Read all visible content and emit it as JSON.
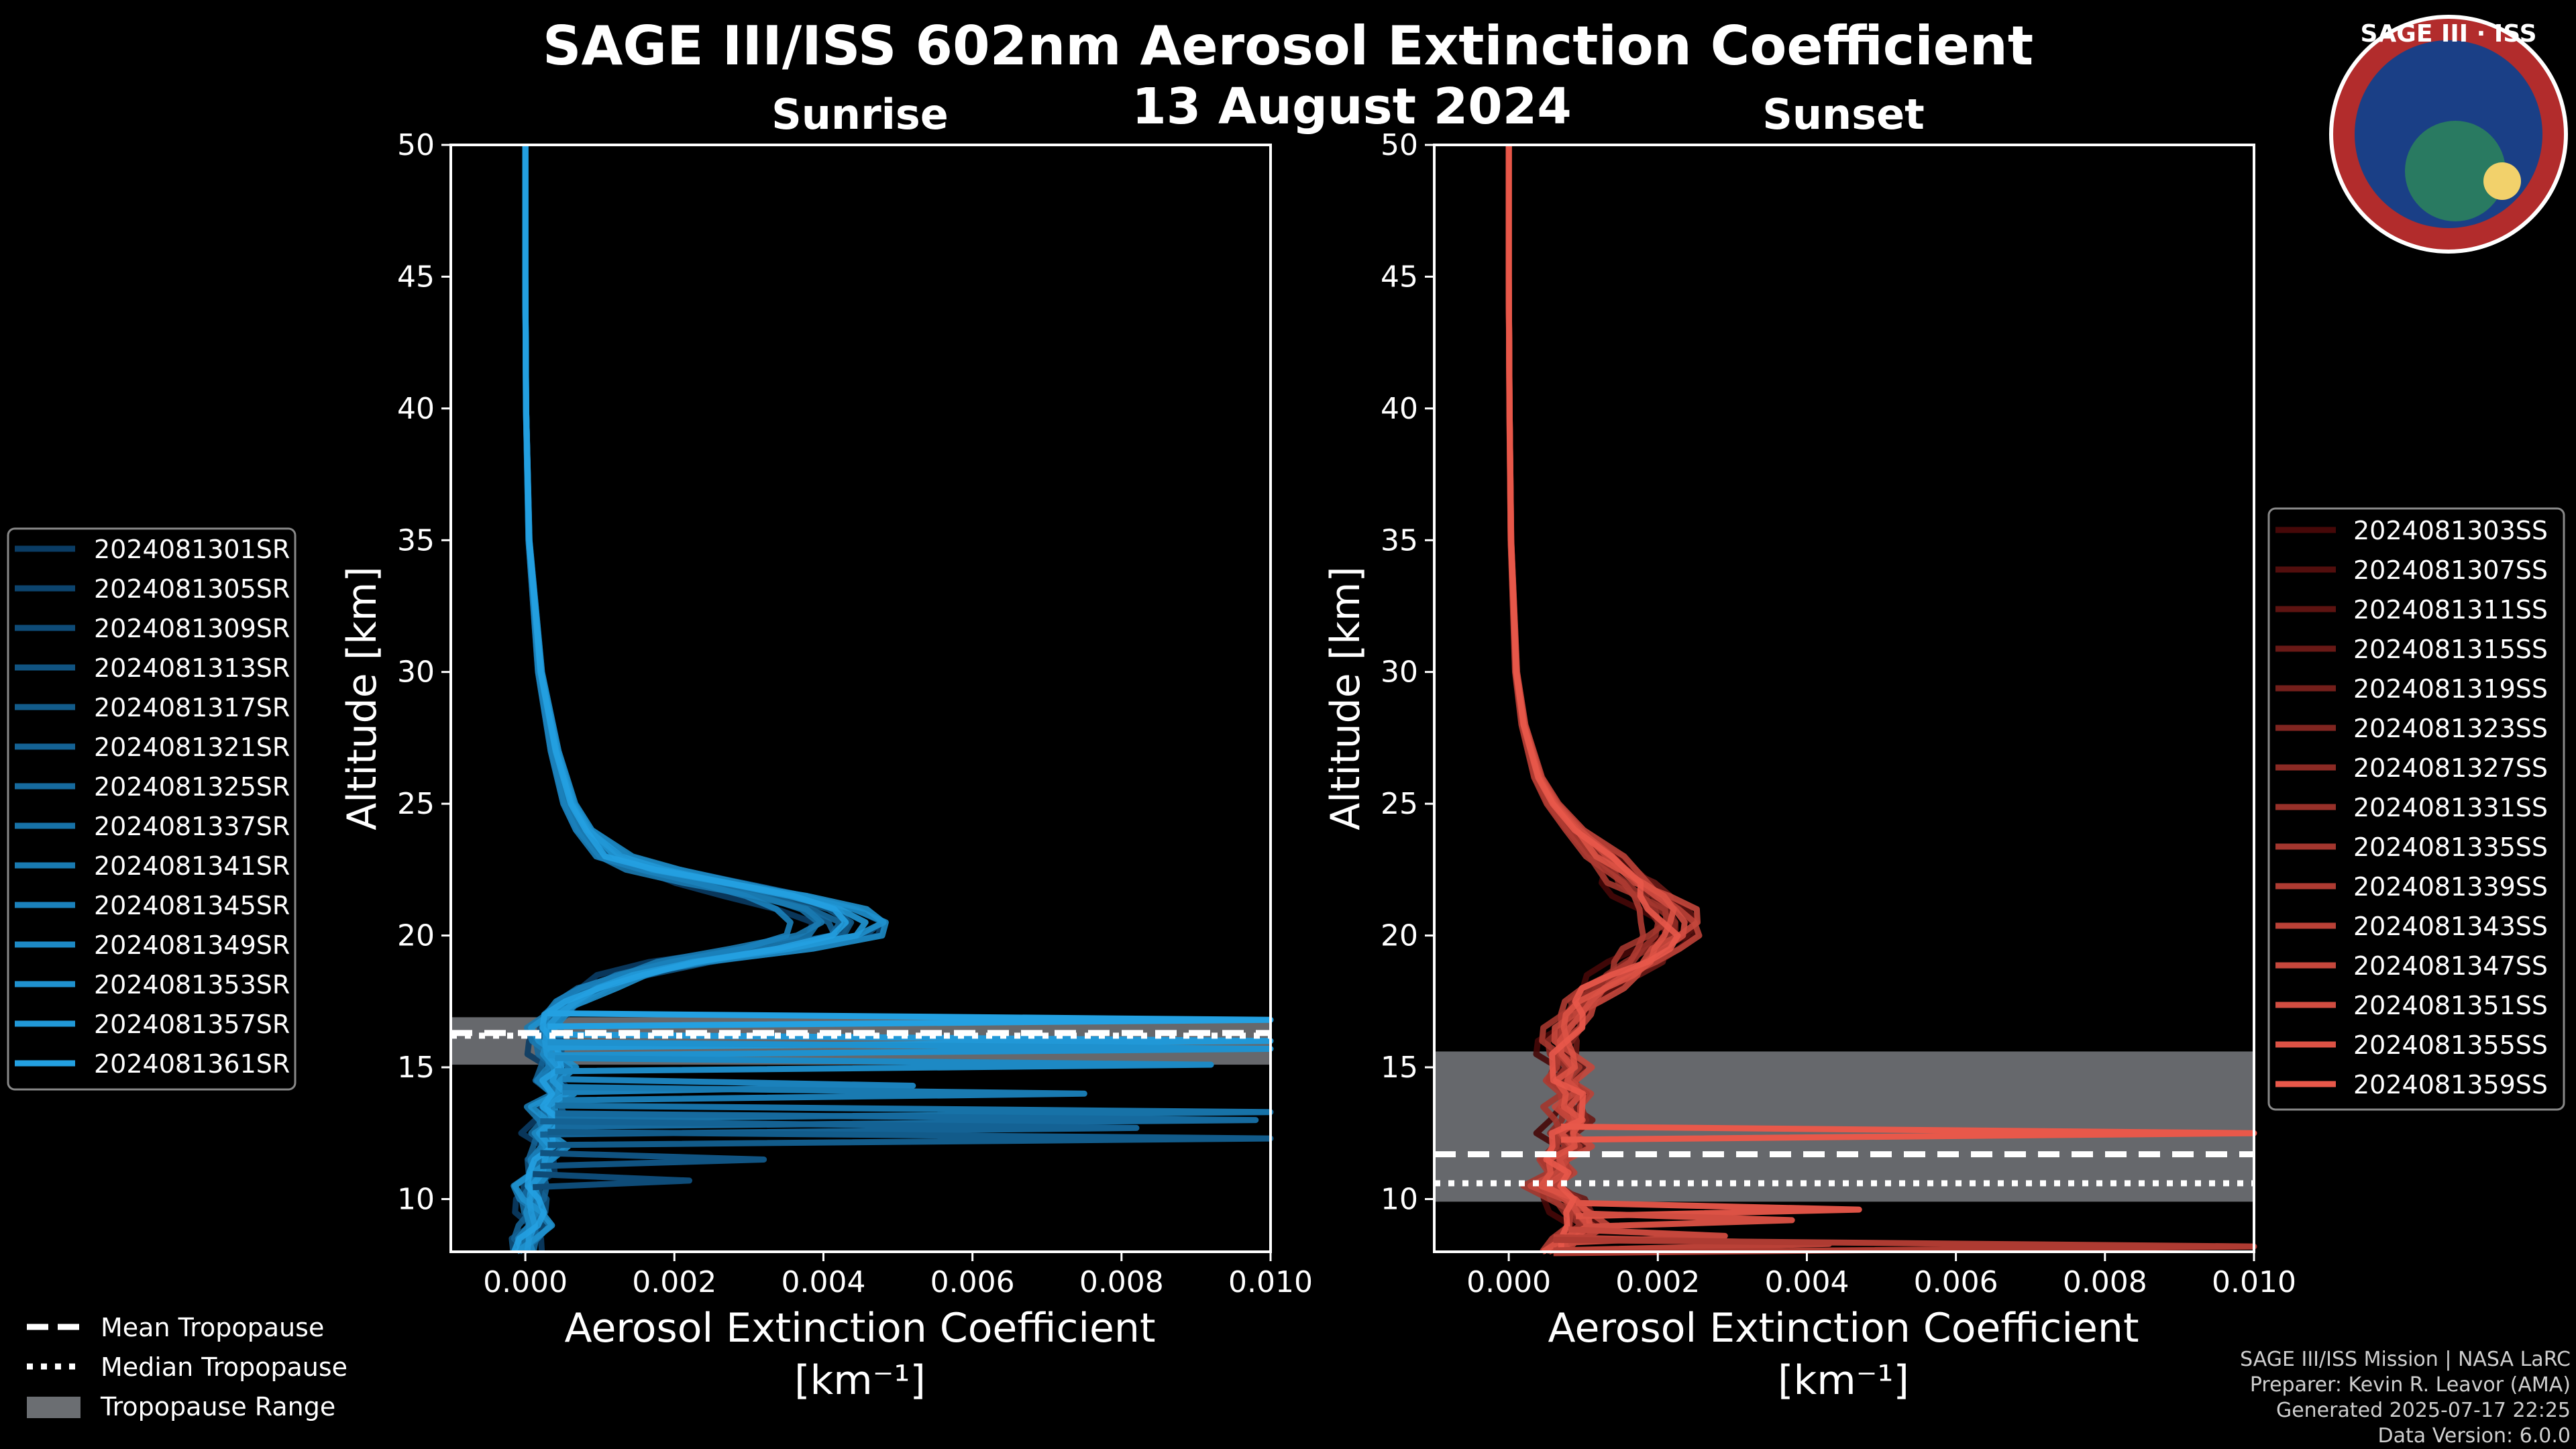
{
  "header": {
    "title": "SAGE III/ISS 602nm Aerosol Extinction Coefficient",
    "date": "13 August 2024"
  },
  "badge": {
    "text": "SAGE III · ISS"
  },
  "credits": {
    "line1": "SAGE III/ISS Mission | NASA LaRC",
    "line2": "Preparer: Kevin R. Leavor (AMA)",
    "line3": "Generated 2025-07-17 22:25",
    "line4": "Data Version: 6.0.0"
  },
  "tropo_legend": {
    "mean": "Mean Tropopause",
    "median": "Median Tropopause",
    "range": "Tropopause Range"
  },
  "colors": {
    "background": "#000000",
    "sunrise": "#1e90d6",
    "sunset": "#e8584a",
    "tropo_range": "#6b6e72"
  },
  "chart_data": [
    {
      "type": "line",
      "subtitle": "Sunrise",
      "xlabel": "Aerosol Extinction Coefficient",
      "xlabel_units": "[km⁻¹]",
      "ylabel": "Altitude [km]",
      "xlim": [
        -0.001,
        0.01
      ],
      "ylim": [
        8,
        50
      ],
      "xticks": [
        "0.000",
        "0.002",
        "0.004",
        "0.006",
        "0.008",
        "0.010"
      ],
      "xtick_values": [
        0,
        0.002,
        0.004,
        0.006,
        0.008,
        0.01
      ],
      "yticks": [
        10,
        15,
        20,
        25,
        30,
        35,
        40,
        45,
        50
      ],
      "tropopause": {
        "mean": 16.3,
        "median": 16.2,
        "range": [
          15.1,
          16.9
        ]
      },
      "series": [
        {
          "name": "2024081301SR"
        },
        {
          "name": "2024081305SR"
        },
        {
          "name": "2024081309SR"
        },
        {
          "name": "2024081313SR"
        },
        {
          "name": "2024081317SR"
        },
        {
          "name": "2024081321SR"
        },
        {
          "name": "2024081325SR"
        },
        {
          "name": "2024081337SR"
        },
        {
          "name": "2024081341SR"
        },
        {
          "name": "2024081345SR"
        },
        {
          "name": "2024081349SR"
        },
        {
          "name": "2024081353SR"
        },
        {
          "name": "2024081357SR"
        },
        {
          "name": "2024081361SR"
        }
      ],
      "typical_profile": {
        "altitude": [
          50,
          45,
          40,
          35,
          30,
          27,
          25,
          24,
          23,
          22.5,
          22,
          21.5,
          21,
          20.5,
          20,
          19.5,
          19,
          18.5,
          18,
          17.5,
          17,
          16.5,
          16,
          15.5,
          15,
          14.5,
          14,
          13.5,
          13,
          12.5,
          12,
          11.5,
          11,
          10.5,
          10,
          9.5,
          9,
          8.5,
          8
        ],
        "value": [
          0.0,
          0.0,
          1e-05,
          5e-05,
          0.0002,
          0.0004,
          0.0006,
          0.0008,
          0.0012,
          0.0018,
          0.0026,
          0.0034,
          0.004,
          0.0043,
          0.0042,
          0.0034,
          0.0022,
          0.0014,
          0.0009,
          0.0006,
          0.0004,
          0.0003,
          0.0003,
          0.0003,
          0.0004,
          0.0003,
          0.0005,
          0.0003,
          0.0004,
          0.0002,
          0.0003,
          0.0002,
          0.0002,
          0.0001,
          0.0001,
          0.0001,
          0.0001,
          0.0,
          0.0
        ]
      },
      "excursions": [
        {
          "altitude": 16.8,
          "value": 0.01
        },
        {
          "altitude": 16.0,
          "value": 0.01
        },
        {
          "altitude": 15.7,
          "value": 0.01
        },
        {
          "altitude": 15.1,
          "value": 0.0092
        },
        {
          "altitude": 14.3,
          "value": 0.0052
        },
        {
          "altitude": 14.0,
          "value": 0.0075
        },
        {
          "altitude": 13.3,
          "value": 0.01
        },
        {
          "altitude": 13.0,
          "value": 0.0098
        },
        {
          "altitude": 12.7,
          "value": 0.0082
        },
        {
          "altitude": 12.3,
          "value": 0.01
        },
        {
          "altitude": 11.5,
          "value": 0.0032
        },
        {
          "altitude": 10.7,
          "value": 0.0022
        }
      ]
    },
    {
      "type": "line",
      "subtitle": "Sunset",
      "xlabel": "Aerosol Extinction Coefficient",
      "xlabel_units": "[km⁻¹]",
      "ylabel": "Altitude [km]",
      "xlim": [
        -0.001,
        0.01
      ],
      "ylim": [
        8,
        50
      ],
      "xticks": [
        "0.000",
        "0.002",
        "0.004",
        "0.006",
        "0.008",
        "0.010"
      ],
      "xtick_values": [
        0,
        0.002,
        0.004,
        0.006,
        0.008,
        0.01
      ],
      "yticks": [
        10,
        15,
        20,
        25,
        30,
        35,
        40,
        45,
        50
      ],
      "tropopause": {
        "mean": 11.7,
        "median": 10.6,
        "range": [
          9.9,
          15.6
        ]
      },
      "series": [
        {
          "name": "2024081303SS"
        },
        {
          "name": "2024081307SS"
        },
        {
          "name": "2024081311SS"
        },
        {
          "name": "2024081315SS"
        },
        {
          "name": "2024081319SS"
        },
        {
          "name": "2024081323SS"
        },
        {
          "name": "2024081327SS"
        },
        {
          "name": "2024081331SS"
        },
        {
          "name": "2024081335SS"
        },
        {
          "name": "2024081339SS"
        },
        {
          "name": "2024081343SS"
        },
        {
          "name": "2024081347SS"
        },
        {
          "name": "2024081351SS"
        },
        {
          "name": "2024081355SS"
        },
        {
          "name": "2024081359SS"
        }
      ],
      "typical_profile": {
        "altitude": [
          50,
          45,
          40,
          35,
          30,
          28,
          26,
          25,
          24,
          23,
          22,
          21.5,
          21,
          20.5,
          20,
          19.5,
          19,
          18.5,
          18,
          17.5,
          17,
          16.5,
          16,
          15.5,
          15,
          14.5,
          14,
          13.5,
          13,
          12.5,
          12,
          11.5,
          11,
          10.5,
          10,
          9.5,
          9,
          8.5,
          8
        ],
        "value": [
          0.0,
          0.0,
          1e-05,
          3e-05,
          0.0001,
          0.0002,
          0.0004,
          0.0006,
          0.0009,
          0.0013,
          0.0017,
          0.0019,
          0.0021,
          0.0022,
          0.0022,
          0.002,
          0.0018,
          0.0015,
          0.0012,
          0.001,
          0.0009,
          0.0008,
          0.0007,
          0.0007,
          0.0008,
          0.0007,
          0.0009,
          0.0008,
          0.0009,
          0.0007,
          0.0008,
          0.0006,
          0.0007,
          0.0005,
          0.0008,
          0.0009,
          0.001,
          0.0008,
          0.0006
        ]
      },
      "excursions": [
        {
          "altitude": 12.5,
          "value": 0.01
        },
        {
          "altitude": 9.6,
          "value": 0.0047
        },
        {
          "altitude": 9.2,
          "value": 0.0038
        },
        {
          "altitude": 8.6,
          "value": 0.0029
        },
        {
          "altitude": 8.3,
          "value": 0.0043
        },
        {
          "altitude": 8.2,
          "value": 0.01
        }
      ]
    }
  ]
}
